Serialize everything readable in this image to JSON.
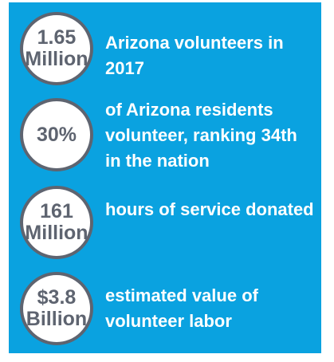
{
  "colors": {
    "panel_background": "#0aa2e0",
    "circle_fill": "#ffffff",
    "circle_border_and_text": "#5e6470",
    "description_text": "#ffffff"
  },
  "stats": [
    {
      "value": "1.65\nMillion",
      "description": "Arizona volunteers in 2017"
    },
    {
      "value": "30%",
      "description": "of Arizona residents volunteer, ranking 34th in the nation"
    },
    {
      "value": "161\nMillion",
      "description": "hours of service donated"
    },
    {
      "value": "$3.8\nBillion",
      "description": "estimated value of volunteer labor"
    }
  ]
}
